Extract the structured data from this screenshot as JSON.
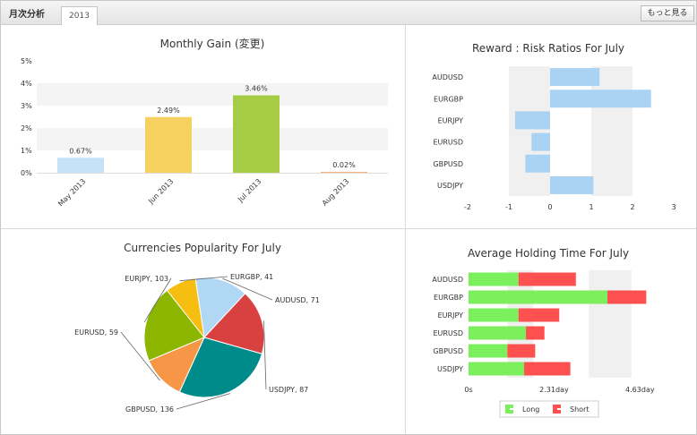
{
  "header": {
    "title": "月次分析",
    "tab": "2013",
    "more_button": "もっと見る"
  },
  "chart_data": [
    {
      "type": "bar",
      "title": "Monthly Gain (変更)",
      "categories": [
        "May 2013",
        "Jun 2013",
        "Jul 2013",
        "Aug 2013"
      ],
      "values": [
        0.67,
        2.49,
        3.46,
        0.02
      ],
      "value_labels": [
        "0.67%",
        "2.49%",
        "3.46%",
        "0.02%"
      ],
      "y_ticks": [
        "0%",
        "1%",
        "2%",
        "3%",
        "4%",
        "5%"
      ],
      "ylim": [
        0,
        5
      ],
      "colors": [
        "#c6e2f7",
        "#f7d160",
        "#a6cc45",
        "#f7b27a"
      ]
    },
    {
      "type": "bar",
      "orientation": "horizontal",
      "title": "Reward : Risk Ratios For July",
      "categories": [
        "AUDUSD",
        "EURGBP",
        "EURJPY",
        "EURUSD",
        "GBPUSD",
        "USDJPY"
      ],
      "values": [
        1.2,
        2.45,
        -0.85,
        -0.45,
        -0.6,
        1.05
      ],
      "x_ticks": [
        "-2",
        "-1",
        "0",
        "1",
        "2",
        "3"
      ],
      "xlim": [
        -2,
        3
      ],
      "color": "#a9d2f3"
    },
    {
      "type": "pie",
      "title": "Currencies Popularity For July",
      "slices": [
        {
          "label": "AUDUSD",
          "value": 71,
          "text": "AUDUSD, 71",
          "color": "#b0d8f5"
        },
        {
          "label": "USDJPY",
          "value": 87,
          "text": "USDJPY, 87",
          "color": "#d94040"
        },
        {
          "label": "GBPUSD",
          "value": 136,
          "text": "GBPUSD, 136",
          "color": "#008b8b"
        },
        {
          "label": "EURUSD",
          "value": 59,
          "text": "EURUSD, 59",
          "color": "#f79646"
        },
        {
          "label": "EURJPY",
          "value": 103,
          "text": "EURJPY, 103",
          "color": "#8db600"
        },
        {
          "label": "EURGBP",
          "value": 41,
          "text": "EURGBP, 41",
          "color": "#f5be10"
        }
      ]
    },
    {
      "type": "bar",
      "orientation": "horizontal",
      "stacked": true,
      "title": "Average Holding Time For July",
      "categories": [
        "AUDUSD",
        "EURGBP",
        "EURJPY",
        "EURUSD",
        "GBPUSD",
        "USDJPY"
      ],
      "x_ticks": [
        "0s",
        "2.31day",
        "4.63day"
      ],
      "x_tick_values": [
        0,
        2.31,
        4.63
      ],
      "xlim": [
        0,
        5.3
      ],
      "series": [
        {
          "name": "Long",
          "values": [
            1.35,
            3.75,
            1.35,
            1.55,
            1.05,
            1.5
          ],
          "color": "#7cf05c"
        },
        {
          "name": "Short",
          "values": [
            1.55,
            1.05,
            1.1,
            0.5,
            0.75,
            1.25
          ],
          "color": "#ff5050"
        }
      ]
    }
  ]
}
